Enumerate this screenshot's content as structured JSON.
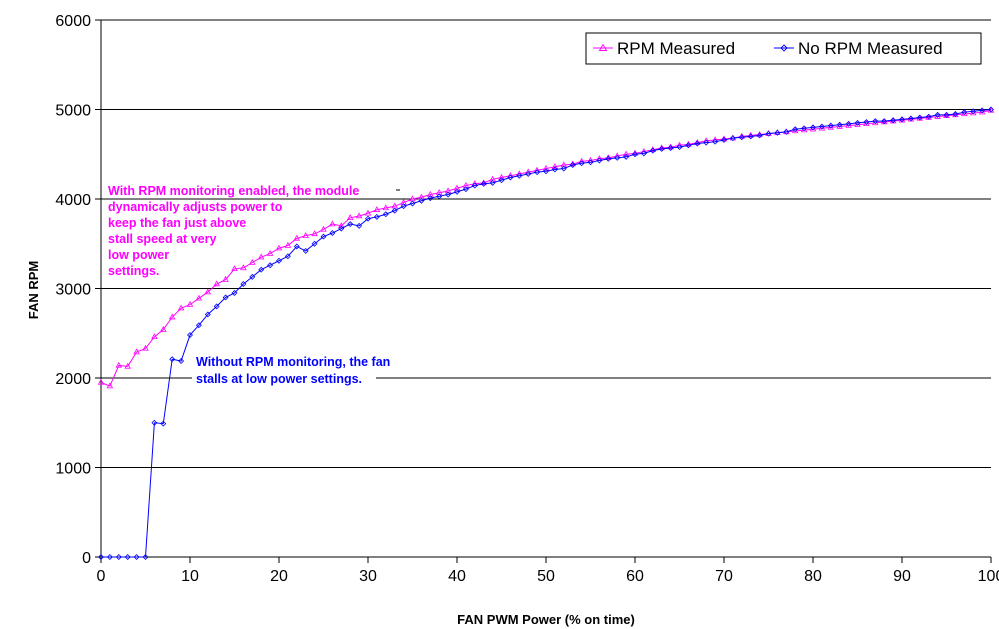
{
  "colors": {
    "rpm_measured": "#ff00ff",
    "no_rpm_measured": "#0000ff",
    "grid": "#000000",
    "background": "#ffffff"
  },
  "chart_data": {
    "type": "line",
    "title": "",
    "xlabel": "FAN PWM Power (% on time)",
    "ylabel": "FAN RPM",
    "xlim": [
      0,
      100
    ],
    "ylim": [
      0,
      6000
    ],
    "x_ticks": [
      "0",
      "10",
      "20",
      "30",
      "40",
      "50",
      "60",
      "70",
      "80",
      "90",
      "100"
    ],
    "y_ticks": [
      "0",
      "1000",
      "2000",
      "3000",
      "4000",
      "5000",
      "6000"
    ],
    "grid": "horizontal",
    "legend_position": "top-right",
    "x": [
      0,
      1,
      2,
      3,
      4,
      5,
      6,
      7,
      8,
      9,
      10,
      11,
      12,
      13,
      14,
      15,
      16,
      17,
      18,
      19,
      20,
      21,
      22,
      23,
      24,
      25,
      26,
      27,
      28,
      29,
      30,
      31,
      32,
      33,
      34,
      35,
      36,
      37,
      38,
      39,
      40,
      41,
      42,
      43,
      44,
      45,
      46,
      47,
      48,
      49,
      50,
      51,
      52,
      53,
      54,
      55,
      56,
      57,
      58,
      59,
      60,
      61,
      62,
      63,
      64,
      65,
      66,
      67,
      68,
      69,
      70,
      71,
      72,
      73,
      74,
      75,
      76,
      77,
      78,
      79,
      80,
      81,
      82,
      83,
      84,
      85,
      86,
      87,
      88,
      89,
      90,
      91,
      92,
      93,
      94,
      95,
      96,
      97,
      98,
      99,
      100
    ],
    "series": [
      {
        "name": "RPM Measured",
        "marker": "triangle",
        "values": [
          1950,
          1910,
          2140,
          2130,
          2290,
          2330,
          2460,
          2540,
          2680,
          2780,
          2820,
          2890,
          2960,
          3050,
          3100,
          3220,
          3230,
          3290,
          3350,
          3390,
          3450,
          3480,
          3560,
          3590,
          3610,
          3660,
          3720,
          3700,
          3790,
          3810,
          3840,
          3880,
          3900,
          3920,
          3960,
          4000,
          4020,
          4050,
          4070,
          4090,
          4120,
          4150,
          4170,
          4180,
          4220,
          4240,
          4260,
          4280,
          4300,
          4320,
          4340,
          4360,
          4380,
          4390,
          4420,
          4430,
          4450,
          4460,
          4480,
          4500,
          4510,
          4530,
          4550,
          4570,
          4580,
          4600,
          4610,
          4630,
          4650,
          4660,
          4670,
          4680,
          4700,
          4710,
          4720,
          4730,
          4740,
          4750,
          4760,
          4770,
          4780,
          4790,
          4800,
          4810,
          4820,
          4830,
          4840,
          4850,
          4860,
          4870,
          4880,
          4890,
          4900,
          4910,
          4920,
          4930,
          4940,
          4950,
          4960,
          4970,
          4990
        ]
      },
      {
        "name": "No RPM Measured",
        "marker": "diamond",
        "values": [
          0,
          0,
          0,
          0,
          0,
          0,
          1500,
          1490,
          2210,
          2190,
          2480,
          2590,
          2710,
          2800,
          2900,
          2950,
          3050,
          3130,
          3210,
          3260,
          3310,
          3360,
          3470,
          3420,
          3500,
          3580,
          3620,
          3670,
          3720,
          3700,
          3780,
          3800,
          3830,
          3870,
          3920,
          3950,
          3980,
          4010,
          4030,
          4050,
          4080,
          4110,
          4150,
          4170,
          4180,
          4210,
          4240,
          4260,
          4280,
          4300,
          4310,
          4330,
          4340,
          4380,
          4400,
          4410,
          4430,
          4450,
          4460,
          4470,
          4500,
          4510,
          4540,
          4560,
          4570,
          4580,
          4600,
          4620,
          4630,
          4640,
          4660,
          4680,
          4690,
          4700,
          4710,
          4730,
          4740,
          4750,
          4780,
          4790,
          4800,
          4810,
          4820,
          4830,
          4840,
          4850,
          4860,
          4870,
          4870,
          4880,
          4890,
          4900,
          4910,
          4920,
          4940,
          4940,
          4950,
          4970,
          4980,
          4990,
          5000
        ]
      }
    ],
    "annotations": [
      {
        "series": "RPM Measured",
        "lines": [
          "With RPM monitoring enabled, the module",
          "dynamically adjusts power to",
          "keep the fan just above",
          "stall speed at very",
          "low power",
          "settings."
        ]
      },
      {
        "series": "No RPM Measured",
        "lines": [
          "Without RPM monitoring, the fan",
          "stalls at low power settings."
        ]
      }
    ]
  }
}
